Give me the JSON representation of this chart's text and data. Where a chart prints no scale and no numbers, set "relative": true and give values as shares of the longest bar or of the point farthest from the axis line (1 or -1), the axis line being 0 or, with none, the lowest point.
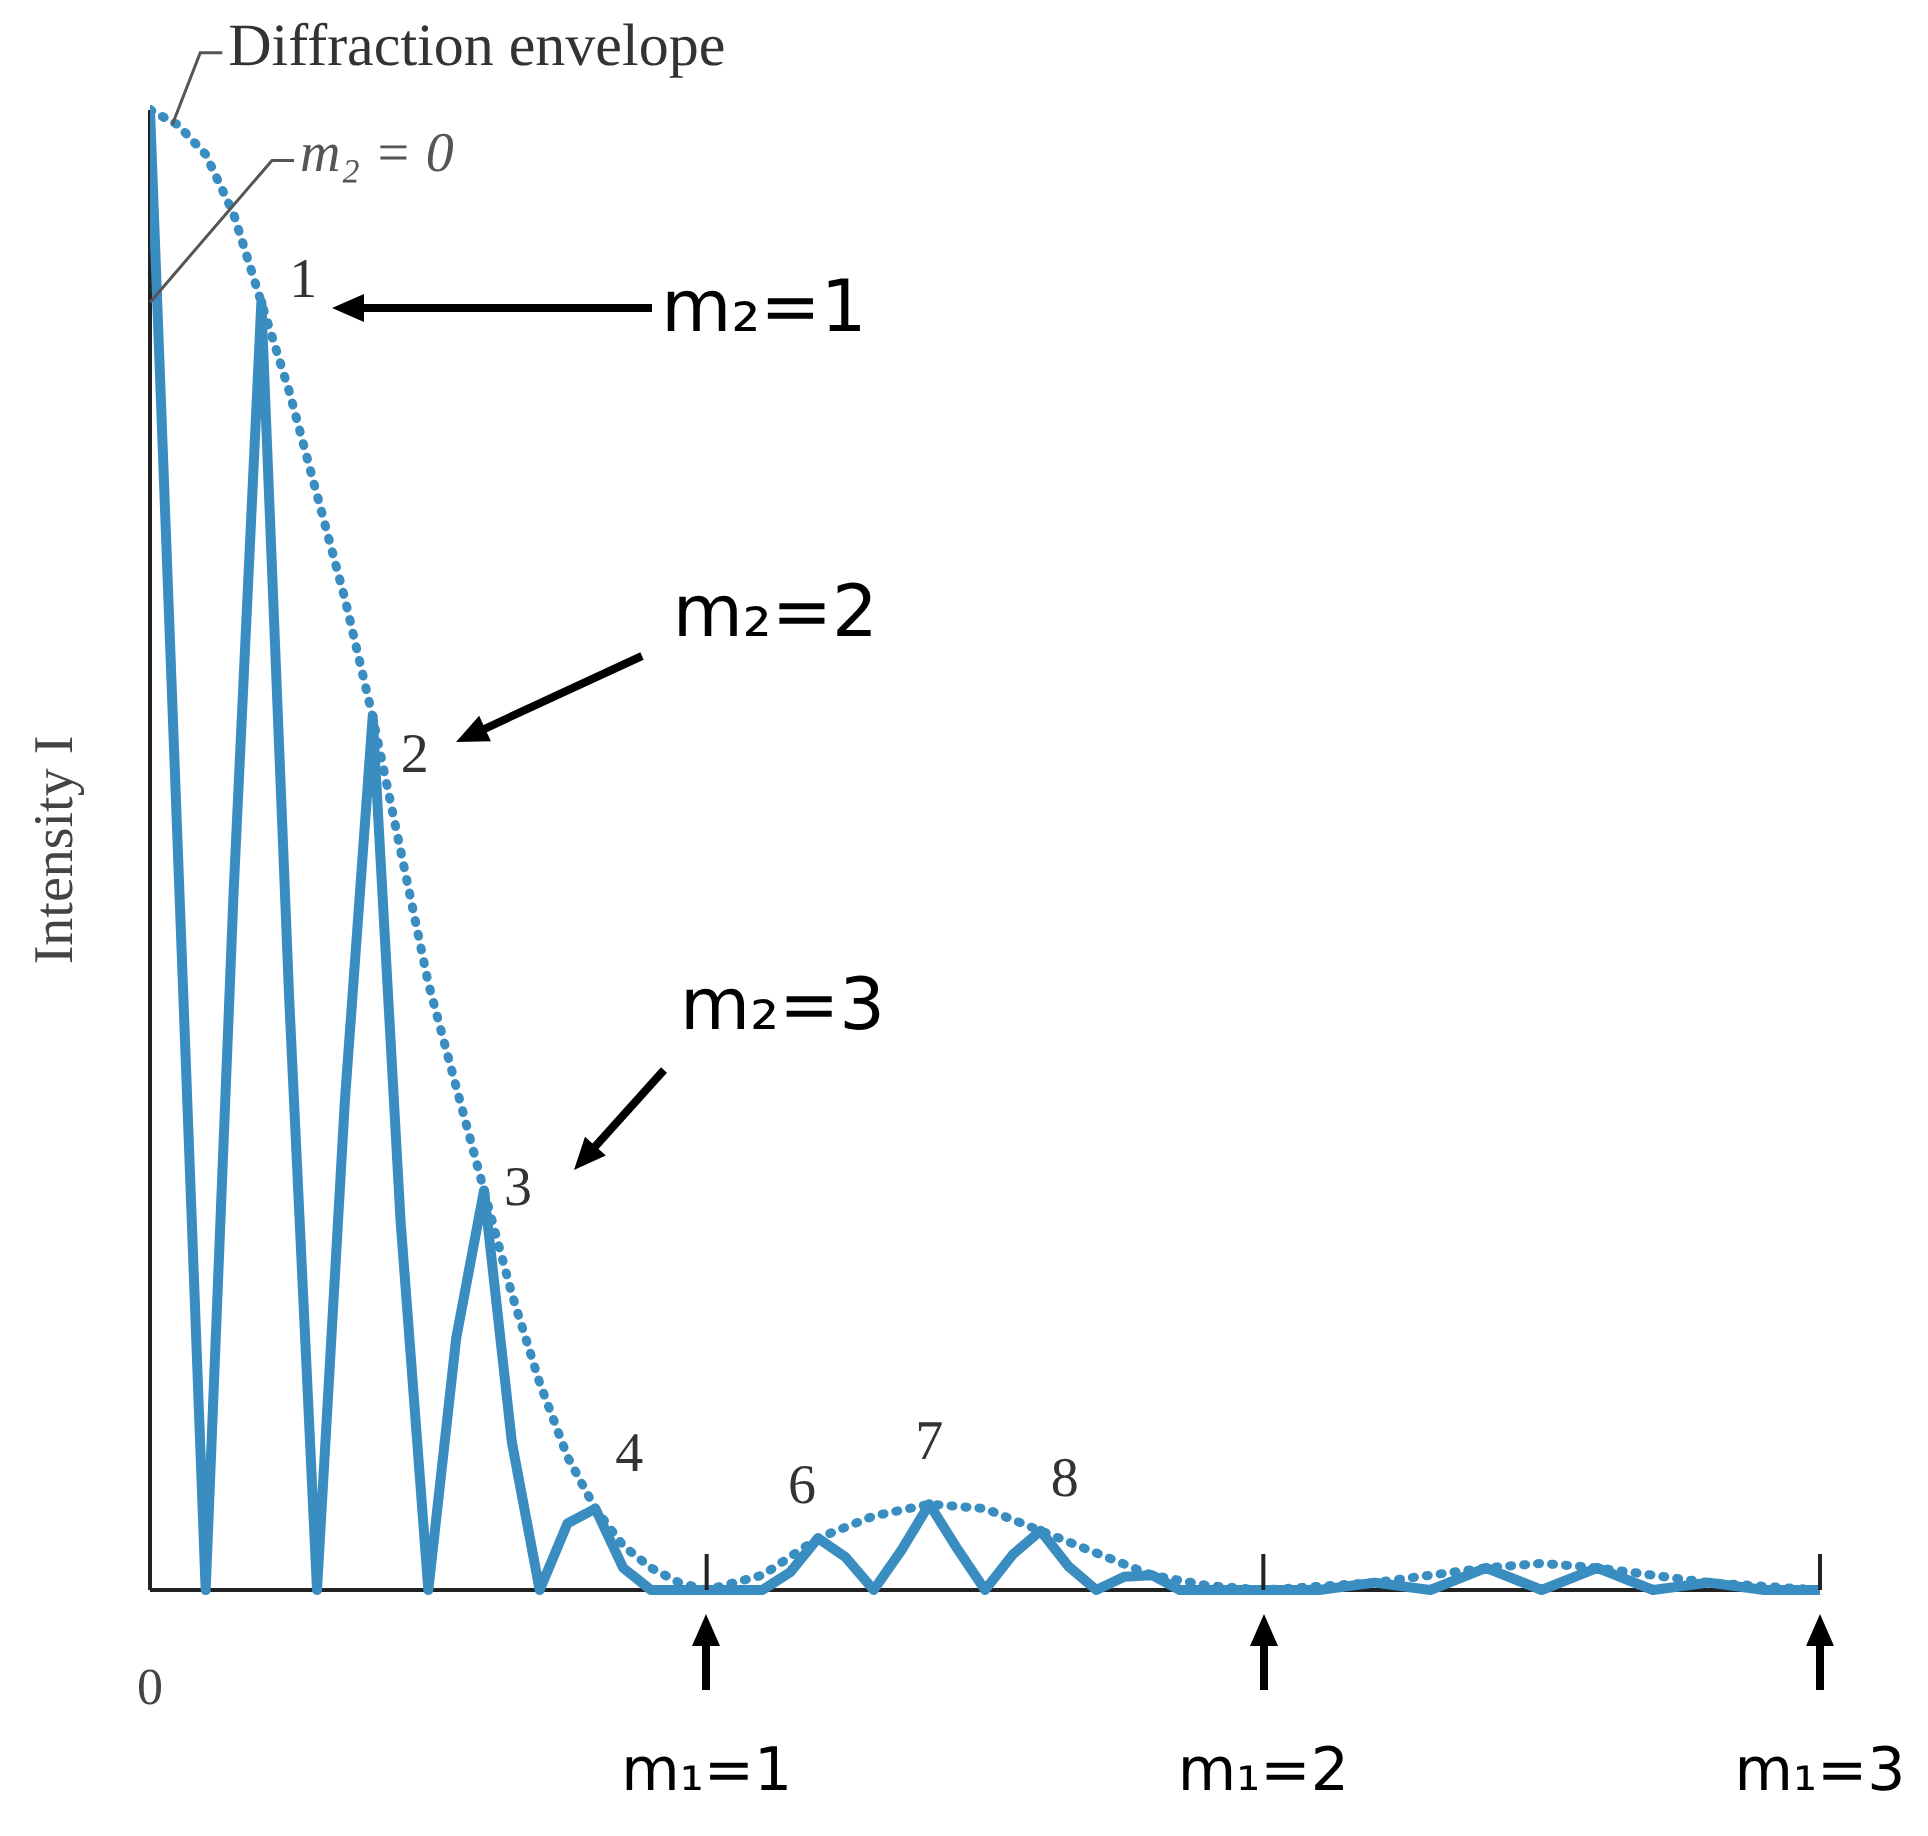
{
  "chart_data": {
    "type": "line",
    "relative": true,
    "ylabel": "Intensity I",
    "xlim": [
      0,
      3
    ],
    "xticks": [
      {
        "value": 1,
        "label": "m₁=1"
      },
      {
        "value": 2,
        "label": "m₁=2"
      },
      {
        "value": 3,
        "label": "m₁=3"
      }
    ],
    "grid": false,
    "legend": false,
    "marker": "none",
    "series": [
      {
        "color": "#3a8dc1",
        "line_style": "solid",
        "x": [
          0,
          0.05,
          0.1,
          0.15,
          0.2,
          0.25,
          0.3,
          0.35,
          0.4,
          0.45,
          0.5,
          0.55,
          0.6,
          0.65,
          0.7,
          0.75,
          0.8,
          0.85,
          0.9,
          0.95,
          1,
          1.05,
          1.1,
          1.15,
          1.2,
          1.25,
          1.3,
          1.35,
          1.4,
          1.45,
          1.5,
          1.55,
          1.6,
          1.65,
          1.7,
          1.75,
          1.8,
          1.85,
          1.9,
          2,
          2.1,
          2.2,
          2.3,
          2.4,
          2.5,
          2.6,
          2.7,
          2.8,
          2.9,
          3
        ],
        "values": [
          1,
          0.5,
          0,
          0.47,
          0.87,
          0.4,
          0,
          0.33,
          0.59,
          0.25,
          0,
          0.17,
          0.27,
          0.1,
          0,
          0.045,
          0.055,
          0.015,
          0,
          0,
          0,
          0,
          0,
          0.012,
          0.035,
          0.022,
          0,
          0.027,
          0.058,
          0.028,
          0,
          0.024,
          0.04,
          0.016,
          0,
          0.009,
          0.01,
          0,
          0,
          0,
          0,
          0.005,
          0,
          0.015,
          0,
          0.015,
          0,
          0.005,
          0,
          0
        ]
      },
      {
        "color": "#3a8dc1",
        "line_style": "dotted",
        "x": [
          0,
          0.05,
          0.1,
          0.15,
          0.2,
          0.25,
          0.3,
          0.35,
          0.4,
          0.45,
          0.5,
          0.55,
          0.6,
          0.65,
          0.7,
          0.75,
          0.8,
          0.85,
          0.9,
          0.95,
          1,
          1.1,
          1.2,
          1.3,
          1.4,
          1.5,
          1.6,
          1.7,
          1.8,
          1.9,
          2,
          2.2,
          2.4,
          2.5,
          2.6,
          2.8,
          3
        ],
        "values": [
          1,
          0.99,
          0.97,
          0.93,
          0.87,
          0.81,
          0.74,
          0.67,
          0.59,
          0.5,
          0.41,
          0.34,
          0.27,
          0.2,
          0.14,
          0.09,
          0.055,
          0.03,
          0.015,
          0.005,
          0,
          0.01,
          0.035,
          0.05,
          0.058,
          0.055,
          0.04,
          0.025,
          0.01,
          0.003,
          0,
          0.005,
          0.015,
          0.018,
          0.015,
          0.005,
          0
        ]
      }
    ],
    "annotations": [
      {
        "text": "Diffraction envelope",
        "x": 0.04,
        "y": 0.99
      },
      {
        "text": "m₂ = 0",
        "x": 0,
        "y": 0.87
      },
      {
        "text": "1",
        "x": 0.2,
        "y": 0.87
      },
      {
        "text": "2",
        "x": 0.4,
        "y": 0.59
      },
      {
        "text": "3",
        "x": 0.6,
        "y": 0.27
      },
      {
        "text": "4",
        "x": 0.8,
        "y": 0.055
      },
      {
        "text": "6",
        "x": 1.2,
        "y": 0.035
      },
      {
        "text": "7",
        "x": 1.4,
        "y": 0.058
      },
      {
        "text": "8",
        "x": 1.6,
        "y": 0.04
      },
      "m₂=1",
      "m₂=2",
      "m₂=3",
      "0"
    ]
  }
}
